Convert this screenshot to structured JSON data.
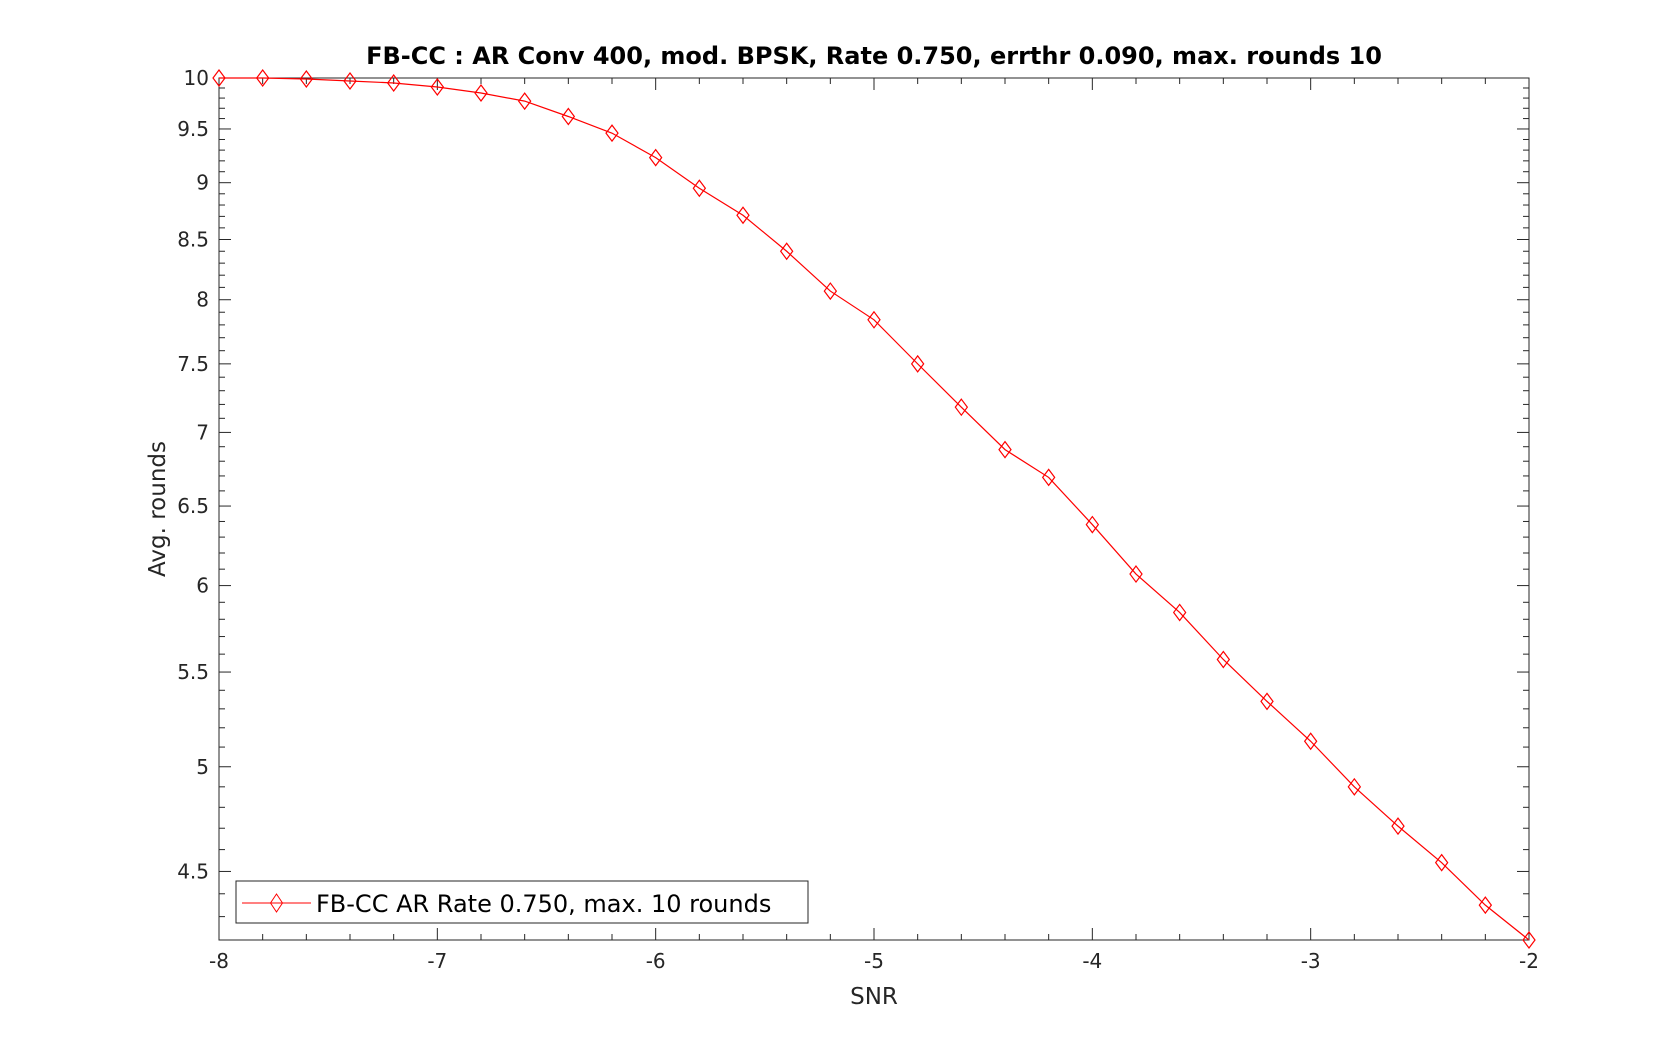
{
  "chart_data": {
    "type": "line",
    "title": "FB-CC : AR Conv 400, mod. BPSK, Rate 0.750, errthr 0.090, max. rounds 10",
    "xlabel": "SNR",
    "ylabel": "Avg. rounds",
    "xlim": [
      -8,
      -2
    ],
    "ylim": [
      4.2,
      10
    ],
    "yscale": "log",
    "xticks": [
      -8,
      -7,
      -6,
      -5,
      -4,
      -3,
      -2
    ],
    "xtick_labels": [
      "-8",
      "-7",
      "-6",
      "-5",
      "-4",
      "-3",
      "-2"
    ],
    "yticks": [
      4.5,
      5,
      5.5,
      6,
      6.5,
      7,
      7.5,
      8,
      8.5,
      9,
      9.5,
      10
    ],
    "ytick_labels": [
      "4.5",
      "5",
      "5.5",
      "6",
      "6.5",
      "7",
      "7.5",
      "8",
      "8.5",
      "9",
      "9.5",
      "10"
    ],
    "grid": false,
    "legend_position": "bottom-left",
    "series": [
      {
        "name": "FB-CC AR Rate 0.750, max. 10 rounds",
        "color": "#ff0000",
        "marker": "diamond",
        "x": [
          -8,
          -7.8,
          -7.6,
          -7.4,
          -7.2,
          -7,
          -6.8,
          -6.6,
          -6.4,
          -6.2,
          -6,
          -5.8,
          -5.6,
          -5.4,
          -5.2,
          -5,
          -4.8,
          -4.6,
          -4.4,
          -4.2,
          -4,
          -3.8,
          -3.6,
          -3.4,
          -3.2,
          -3,
          -2.8,
          -2.6,
          -2.4,
          -2.2,
          -2
        ],
        "y": [
          10,
          10,
          9.99,
          9.97,
          9.95,
          9.91,
          9.85,
          9.77,
          9.62,
          9.46,
          9.23,
          8.95,
          8.71,
          8.4,
          8.07,
          7.84,
          7.5,
          7.18,
          6.88,
          6.69,
          6.38,
          6.07,
          5.84,
          5.57,
          5.34,
          5.13,
          4.9,
          4.71,
          4.54,
          4.35,
          4.2
        ]
      }
    ]
  }
}
